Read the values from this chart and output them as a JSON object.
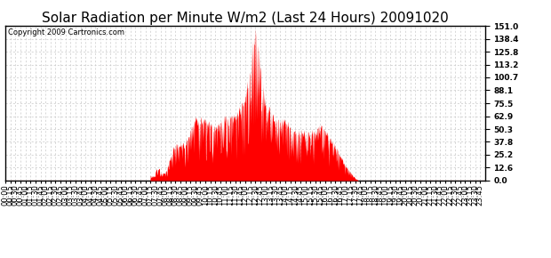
{
  "title": "Solar Radiation per Minute W/m2 (Last 24 Hours) 20091020",
  "copyright_text": "Copyright 2009 Cartronics.com",
  "background_color": "#ffffff",
  "plot_bg_color": "#ffffff",
  "bar_color": "#ff0000",
  "dashed_line_color": "#c8c8c8",
  "y_ticks": [
    0.0,
    12.6,
    25.2,
    37.8,
    50.3,
    62.9,
    75.5,
    88.1,
    100.7,
    113.2,
    125.8,
    138.4,
    151.0
  ],
  "ylim": [
    0.0,
    151.0
  ],
  "title_fontsize": 11,
  "tick_fontsize": 6.5,
  "num_minutes": 1440
}
